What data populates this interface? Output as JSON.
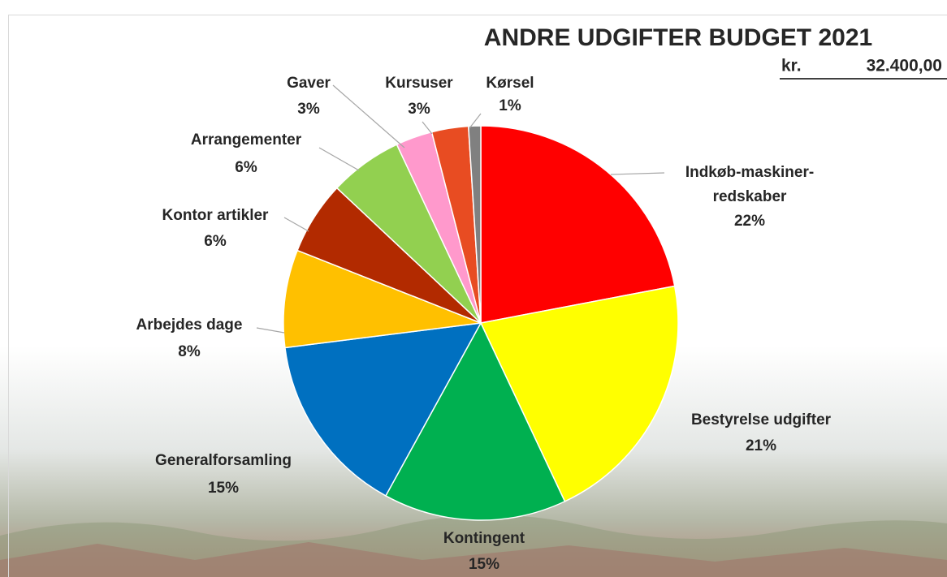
{
  "chart_data": {
    "type": "pie",
    "title": "ANDRE UDGIFTER BUDGET 2021",
    "total": {
      "currency": "kr.",
      "amount": "32.400,00"
    },
    "categories": [
      "Indkøb-maskiner-redskaber",
      "Bestyrelse udgifter",
      "Kontingent",
      "Generalforsamling",
      "Arbejdes dage",
      "Kontor artikler",
      "Arrangementer",
      "Gaver",
      "Kursuser",
      "Kørsel"
    ],
    "values": [
      22,
      21,
      15,
      15,
      8,
      6,
      6,
      3,
      3,
      1
    ],
    "value_labels": [
      "22%",
      "21%",
      "15%",
      "15%",
      "8%",
      "6%",
      "6%",
      "3%",
      "3%",
      "1%"
    ],
    "colors": [
      "#ff0000",
      "#ffff00",
      "#00b050",
      "#0070c0",
      "#ffc000",
      "#b22a00",
      "#92d050",
      "#ff99cc",
      "#e84c22",
      "#808080"
    ]
  }
}
